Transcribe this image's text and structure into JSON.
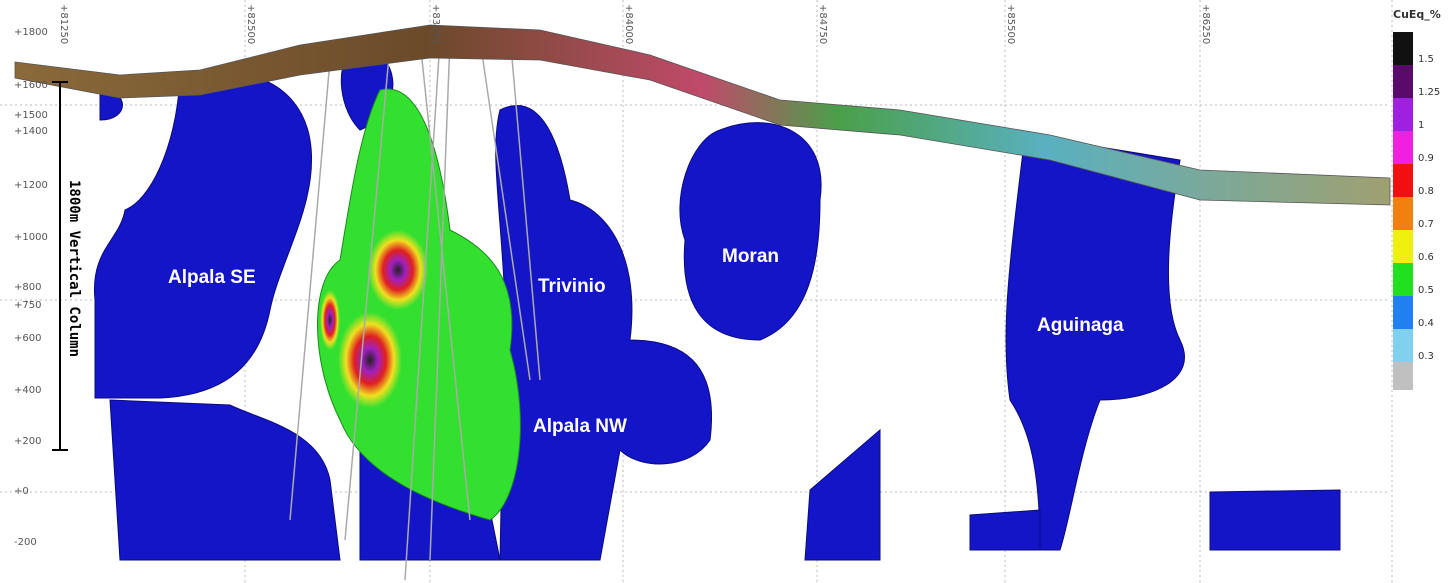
{
  "header": {
    "legend_title": "CuEq_%"
  },
  "legend": {
    "labels": [
      "1.5",
      "1.25",
      "1",
      "0.9",
      "0.8",
      "0.7",
      "0.6",
      "0.5",
      "0.4",
      "0.3"
    ]
  },
  "elevation_ticks": [
    "+1800",
    "+1600",
    "+1500",
    "+1400",
    "+1200",
    "+1000",
    "+800",
    "+750",
    "+600",
    "+400",
    "+200",
    "+0",
    "-200"
  ],
  "easting_ticks": [
    "+81250",
    "+82500",
    "+83250",
    "+84000",
    "+84750",
    "+85500",
    "+86250"
  ],
  "scale_bar": {
    "label": "1800m Vertical Column"
  },
  "targets": [
    "Alpala SE",
    "Trivinio",
    "Moran",
    "Alpala NW",
    "Aguinaga"
  ]
}
